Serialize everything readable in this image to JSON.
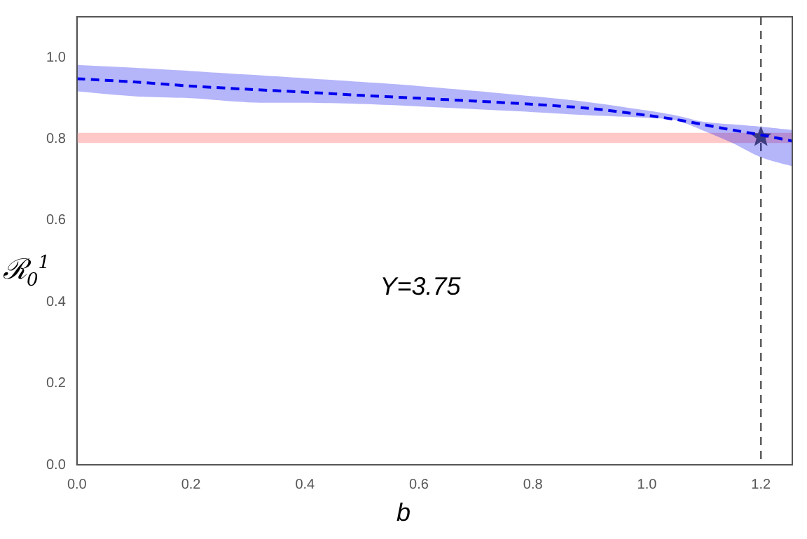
{
  "chart_data": {
    "type": "line",
    "xlabel": "b",
    "ylabel": "ℛ$_{0}$$^{1}$",
    "annotations": [
      "Y=3.75"
    ],
    "xlim": [
      0,
      1.255
    ],
    "ylim": [
      0,
      1.1
    ],
    "xticks": [
      {
        "value": 0,
        "label": "0.0"
      },
      {
        "value": 0.2,
        "label": "0.2"
      },
      {
        "value": 0.4,
        "label": "0.4"
      },
      {
        "value": 0.6,
        "label": "0.6"
      },
      {
        "value": 0.8,
        "label": "0.8"
      },
      {
        "value": 1,
        "label": "1.0"
      },
      {
        "value": 1.2,
        "label": "1.2"
      }
    ],
    "yticks": [
      {
        "value": 0,
        "label": "0.0"
      },
      {
        "value": 0.2,
        "label": "0.2"
      },
      {
        "value": 0.4,
        "label": "0.4"
      },
      {
        "value": 0.6,
        "label": "0.6"
      },
      {
        "value": 0.8,
        "label": "0.8"
      },
      {
        "value": 1,
        "label": "1.0"
      }
    ],
    "grid": false,
    "legend": false,
    "series": [
      {
        "type": "line",
        "color": "#0000ee",
        "line_style": "dashed",
        "marker": "none",
        "x": [
          0,
          0.1,
          0.2,
          0.3,
          0.4,
          0.5,
          0.6,
          0.7,
          0.8,
          0.9,
          1.0,
          1.05,
          1.1,
          1.15,
          1.2,
          1.255
        ],
        "values": [
          0.948,
          0.94,
          0.93,
          0.922,
          0.915,
          0.907,
          0.9,
          0.893,
          0.885,
          0.875,
          0.858,
          0.848,
          0.835,
          0.822,
          0.81,
          0.795
        ],
        "lower": [
          0.917,
          0.905,
          0.9,
          0.89,
          0.889,
          0.886,
          0.88,
          0.873,
          0.866,
          0.858,
          0.852,
          0.846,
          0.82,
          0.79,
          0.755,
          0.733
        ],
        "upper": [
          0.982,
          0.975,
          0.967,
          0.958,
          0.949,
          0.94,
          0.93,
          0.918,
          0.905,
          0.89,
          0.87,
          0.858,
          0.842,
          0.836,
          0.83,
          0.822
        ]
      },
      {
        "type": "scatter",
        "color": "#555555",
        "marker": "star",
        "x": [
          1.2
        ],
        "values": [
          0.805
        ]
      }
    ],
    "ref_lines": [
      {
        "axis": "x",
        "value": 1.2,
        "color": "#333333",
        "line_style": "dashed"
      }
    ],
    "bands": [
      {
        "axis": "y",
        "from": 0.79,
        "to": 0.815,
        "color": "#ffc8c8"
      }
    ]
  }
}
